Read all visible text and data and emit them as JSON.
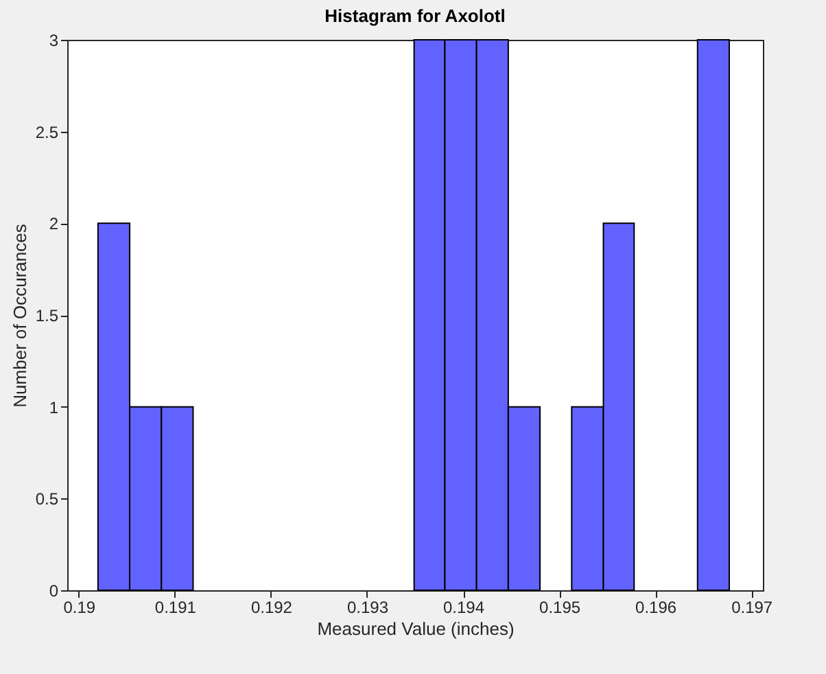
{
  "chart_data": {
    "type": "histogram",
    "title": "Histagram for Axolotl",
    "xlabel": "Measured Value (inches)",
    "ylabel": "Number of Occurances",
    "bins": [
      0.1902,
      0.19053,
      0.19086,
      0.19119,
      0.19349,
      0.19381,
      0.19414,
      0.19447,
      0.1948,
      0.19513,
      0.19546,
      0.19578,
      0.19644,
      0.19677
    ],
    "values": [
      2,
      1,
      1,
      0,
      3,
      3,
      3,
      1,
      0,
      1,
      2,
      0,
      3
    ],
    "color": "#6262ff",
    "xlim": [
      0.18988,
      0.19712
    ],
    "xticks": [
      0.19,
      0.191,
      0.192,
      0.193,
      0.194,
      0.195,
      0.196,
      0.197
    ],
    "ylim": [
      0,
      3
    ],
    "yticks": [
      0,
      0.5,
      1,
      1.5,
      2,
      2.5,
      3
    ],
    "grid": false
  }
}
